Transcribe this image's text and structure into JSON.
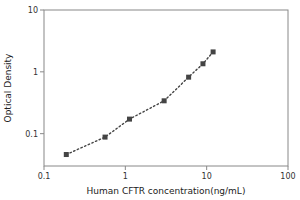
{
  "chart_data": {
    "type": "line",
    "xlabel": "Human CFTR concentration(ng/mL)",
    "ylabel": "Optical Density",
    "x": [
      0.188,
      0.563,
      1.125,
      3.0,
      6.0,
      9.0,
      12.0
    ],
    "values": [
      0.046,
      0.088,
      0.172,
      0.34,
      0.82,
      1.35,
      2.1
    ],
    "color": "#444444",
    "marker": "square",
    "line_style": "dotted",
    "log": true,
    "grid": false,
    "xlim": [
      0.1,
      100
    ],
    "ylim": [
      0.03,
      10
    ],
    "xticks": [
      0.1,
      1,
      10,
      100
    ],
    "yticks": [
      0.1,
      1,
      10
    ]
  }
}
